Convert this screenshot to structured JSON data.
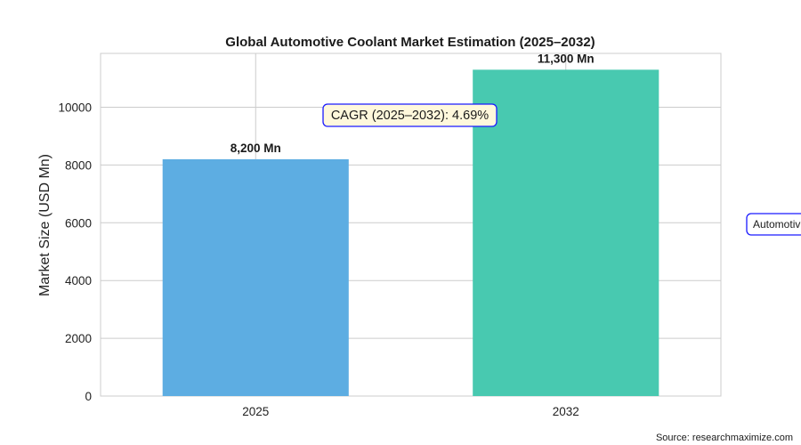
{
  "chart_data": {
    "type": "bar",
    "title": "Global Automotive Coolant Market Estimation (2025–2032)",
    "xlabel": "",
    "ylabel": "Market Size (USD Mn)",
    "categories": [
      "2025",
      "2032"
    ],
    "values": [
      8200,
      11300
    ],
    "data_labels": [
      "8,200 Mn",
      "11,300 Mn"
    ],
    "bar_colors": [
      "#5DADE2",
      "#48C9B0"
    ],
    "ylim": [
      0,
      11865
    ],
    "yticks": [
      0,
      2000,
      4000,
      6000,
      8000,
      10000
    ],
    "grid": true,
    "annotation": "CAGR (2025–2032): 4.69%",
    "side_label": "Automotiv",
    "source": "Source: researchmaximize.com"
  }
}
